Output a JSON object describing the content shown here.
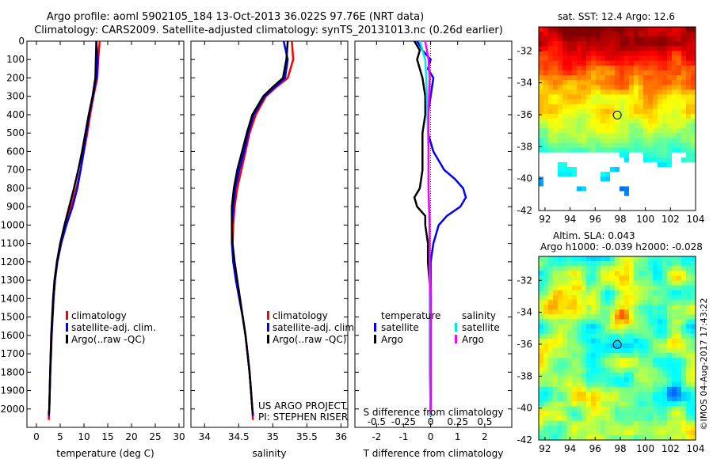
{
  "title_line1": "Argo profile: aoml 5902105_184 13-Oct-2013 36.022S 97.76E (NRT data)",
  "title_line2": "Climatology: CARS2009. Satellite-adjusted climatology: synTS_20131013.nc (0.26d earlier)",
  "credits": [
    "US ARGO PROJECT",
    "PI: STEPHEN RISER"
  ],
  "watermark": "©IMOS 04-Aug-2017 17:43:22",
  "colors": {
    "climatology": "#ff0000",
    "satellite": "#0000ff",
    "argo": "#000000",
    "sat_salinity": "#00e5e5",
    "argo_salinity": "#ff00ff"
  },
  "chart_data": [
    {
      "type": "line",
      "name": "temperature",
      "xlabel": "temperature (deg C)",
      "xlim": [
        -2,
        31
      ],
      "xticks": [
        0,
        5,
        10,
        15,
        20,
        25,
        30
      ],
      "ylim": [
        2100,
        0
      ],
      "yticks": [
        0,
        100,
        200,
        300,
        400,
        500,
        600,
        700,
        800,
        900,
        1000,
        1100,
        1200,
        1300,
        1400,
        1500,
        1600,
        1700,
        1800,
        1900,
        2000
      ],
      "legend": [
        "climatology",
        "satellite-adj. clim.",
        "Argo(..raw -QC)"
      ],
      "series": [
        {
          "name": "climatology",
          "color": "#ff0000",
          "depth": [
            0,
            100,
            200,
            300,
            400,
            500,
            600,
            700,
            800,
            900,
            1000,
            1100,
            1200,
            1300,
            1400,
            1500,
            1600,
            1700,
            1800,
            1900,
            2000,
            2060
          ],
          "values": [
            13.3,
            13.0,
            12.8,
            12.0,
            11.3,
            10.7,
            10.0,
            9.3,
            8.4,
            7.3,
            6.2,
            5.2,
            4.4,
            3.9,
            3.6,
            3.4,
            3.2,
            3.1,
            2.9,
            2.8,
            2.7,
            2.6
          ]
        },
        {
          "name": "satellite",
          "color": "#0000ff",
          "depth": [
            0,
            100,
            200,
            300,
            400,
            500,
            600,
            700,
            800,
            900,
            1000,
            1100,
            1200,
            1300,
            1400,
            1500,
            1600,
            1700,
            1800,
            1900,
            2000,
            2040
          ],
          "values": [
            12.6,
            12.9,
            12.6,
            11.9,
            11.1,
            10.5,
            9.9,
            9.3,
            8.6,
            7.6,
            6.3,
            5.2,
            4.4,
            3.9,
            3.6,
            3.4,
            3.2,
            3.0,
            2.9,
            2.8,
            2.7,
            2.6
          ]
        },
        {
          "name": "Argo",
          "color": "#000000",
          "depth": [
            0,
            100,
            200,
            300,
            400,
            500,
            600,
            700,
            800,
            900,
            1000,
            1100,
            1200,
            1300,
            1400,
            1500,
            1600,
            1700,
            1800,
            1900,
            2000,
            2030
          ],
          "values": [
            12.6,
            12.5,
            12.4,
            11.8,
            11.0,
            10.3,
            9.6,
            8.8,
            7.9,
            6.9,
            5.9,
            5.0,
            4.3,
            3.8,
            3.5,
            3.3,
            3.1,
            3.0,
            2.9,
            2.8,
            2.7,
            2.6
          ]
        }
      ]
    },
    {
      "type": "line",
      "name": "salinity",
      "xlabel": "salinity",
      "xlim": [
        33.8,
        36.1
      ],
      "xticks": [
        34,
        34.5,
        35,
        35.5,
        36
      ],
      "ylim": [
        2100,
        0
      ],
      "legend": [
        "climatology",
        "satellite-adj. clim.",
        "Argo(..raw -QC)"
      ],
      "series": [
        {
          "name": "climatology",
          "color": "#ff0000",
          "depth": [
            0,
            100,
            200,
            250,
            300,
            400,
            500,
            600,
            700,
            800,
            900,
            1000,
            1100,
            1200,
            1300,
            1400,
            1500,
            1600,
            1700,
            1800,
            1900,
            2000,
            2060
          ],
          "values": [
            35.28,
            35.3,
            35.22,
            35.05,
            34.9,
            34.75,
            34.66,
            34.6,
            34.54,
            34.48,
            34.44,
            34.42,
            34.41,
            34.42,
            34.46,
            34.51,
            34.56,
            34.6,
            34.63,
            34.66,
            34.68,
            34.7,
            34.71
          ]
        },
        {
          "name": "satellite",
          "color": "#0000ff",
          "depth": [
            0,
            100,
            200,
            250,
            300,
            400,
            500,
            600,
            700,
            800,
            900,
            1000,
            1100,
            1200,
            1300,
            1400,
            1500,
            1600,
            1700,
            1800,
            1900,
            2000,
            2040
          ],
          "values": [
            35.16,
            35.22,
            35.18,
            35.03,
            34.88,
            34.72,
            34.64,
            34.58,
            34.51,
            34.45,
            34.42,
            34.4,
            34.4,
            34.42,
            34.46,
            34.51,
            34.56,
            34.6,
            34.63,
            34.66,
            34.68,
            34.7,
            34.71
          ]
        },
        {
          "name": "Argo",
          "color": "#000000",
          "depth": [
            0,
            100,
            200,
            250,
            300,
            400,
            500,
            600,
            700,
            800,
            900,
            1000,
            1100,
            1200,
            1300,
            1400,
            1500,
            1600,
            1700,
            1800,
            1900,
            2000,
            2030
          ],
          "values": [
            35.22,
            35.2,
            35.15,
            35.0,
            34.86,
            34.7,
            34.62,
            34.55,
            34.48,
            34.43,
            34.4,
            34.4,
            34.41,
            34.44,
            34.48,
            34.52,
            34.56,
            34.6,
            34.63,
            34.66,
            34.68,
            34.7,
            34.71
          ]
        }
      ]
    },
    {
      "type": "line",
      "name": "difference",
      "xlabel": "T difference from climatology",
      "xlabel_top": "S difference from climatology",
      "xlim": [
        -2.8,
        3.0
      ],
      "xticks": [
        -2,
        -1,
        0,
        1,
        2
      ],
      "xlim_salinity": [
        -0.7,
        0.75
      ],
      "xticks_salinity": [
        -0.5,
        -0.25,
        0,
        0.25,
        0.5
      ],
      "xticklabels_salinity": [
        "-0.5",
        "-0.25",
        "0",
        "0.25",
        "0.5"
      ],
      "ylim": [
        2100,
        0
      ],
      "legend_headers": [
        "temperature",
        "salinity"
      ],
      "legend": [
        "satellite",
        "Argo",
        "satellite",
        "Argo"
      ],
      "series": [
        {
          "name": "T satellite",
          "color": "#0000ff",
          "depth": [
            0,
            50,
            100,
            150,
            200,
            300,
            400,
            500,
            600,
            700,
            750,
            800,
            850,
            900,
            950,
            1000,
            1050,
            1100,
            1200,
            1400,
            1600,
            1800,
            2000,
            2040
          ],
          "values": [
            -0.5,
            -0.3,
            0.0,
            -0.1,
            0.1,
            0.0,
            -0.1,
            -0.1,
            0.1,
            0.5,
            0.9,
            1.2,
            1.3,
            1.1,
            0.6,
            0.3,
            0.2,
            0.1,
            0.0,
            0.0,
            0.0,
            0.0,
            0.0,
            0.0
          ]
        },
        {
          "name": "T Argo",
          "color": "#000000",
          "depth": [
            0,
            50,
            100,
            150,
            200,
            300,
            400,
            500,
            600,
            700,
            800,
            850,
            900,
            950,
            1000,
            1100,
            1200,
            1400,
            1600,
            1800,
            2000,
            2030
          ],
          "values": [
            -0.6,
            -0.4,
            -0.5,
            -0.4,
            -0.3,
            -0.2,
            -0.2,
            -0.3,
            -0.3,
            -0.3,
            -0.4,
            -0.6,
            -0.5,
            -0.2,
            -0.2,
            -0.1,
            -0.1,
            0.0,
            0.0,
            0.0,
            0.0,
            0.0
          ]
        },
        {
          "name": "S satellite",
          "color": "#00e5e5",
          "depth": [
            0,
            100,
            200,
            400,
            600,
            800,
            1000,
            1200,
            1400,
            1600,
            1800,
            2000,
            2040
          ],
          "values": [
            -0.1,
            -0.05,
            -0.04,
            -0.03,
            -0.02,
            -0.02,
            -0.01,
            -0.01,
            -0.01,
            -0.01,
            -0.01,
            0.0,
            0.0
          ]
        },
        {
          "name": "S Argo",
          "color": "#ff00ff",
          "depth": [
            0,
            100,
            200,
            400,
            600,
            800,
            1000,
            1200,
            1400,
            1600,
            1800,
            2000,
            2030
          ],
          "values": [
            -0.05,
            -0.02,
            -0.01,
            -0.02,
            -0.02,
            -0.02,
            -0.01,
            -0.01,
            0.0,
            0.0,
            0.0,
            0.0,
            0.0
          ]
        }
      ]
    },
    {
      "type": "heatmap",
      "name": "sst-map",
      "title": "sat. SST: 12.4  Argo: 12.6",
      "xticks": [
        92,
        94,
        96,
        98,
        100,
        102,
        104
      ],
      "xlim": [
        91.5,
        104
      ],
      "yticks": [
        -32,
        -34,
        -36,
        -38,
        -40,
        -42
      ],
      "ylim": [
        -42,
        -30.5
      ],
      "marker": {
        "lon": 97.76,
        "lat": -36.022
      }
    },
    {
      "type": "heatmap",
      "name": "sla-map",
      "title_line1": "Altim. SLA: 0.043",
      "title_line2": "Argo h1000: -0.039 h2000: -0.028",
      "xticks": [
        92,
        94,
        96,
        98,
        100,
        102,
        104
      ],
      "xlim": [
        91.5,
        104
      ],
      "yticks": [
        -32,
        -34,
        -36,
        -38,
        -40,
        -42
      ],
      "ylim": [
        -42,
        -30.5
      ],
      "marker": {
        "lon": 97.76,
        "lat": -36.022
      }
    }
  ]
}
